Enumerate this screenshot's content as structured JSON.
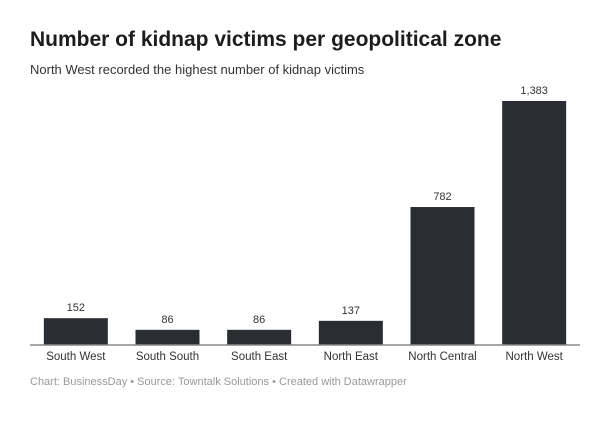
{
  "chart_data": {
    "type": "bar",
    "title": "Number of kidnap victims per geopolitical zone",
    "subtitle": "North West recorded the highest number of kidnap victims",
    "categories": [
      "South West",
      "South South",
      "South East",
      "North East",
      "North Central",
      "North West"
    ],
    "values": [
      152,
      86,
      86,
      137,
      782,
      1383
    ],
    "data_labels": [
      "152",
      "86",
      "86",
      "137",
      "782",
      "1,383"
    ],
    "xlabel": "",
    "ylabel": "",
    "ylim": [
      0,
      1383
    ],
    "grid": false,
    "bar_color": "#2a2e33",
    "footer": "Chart: BusinessDay • Source: Towntalk Solutions • Created with Datawrapper"
  }
}
